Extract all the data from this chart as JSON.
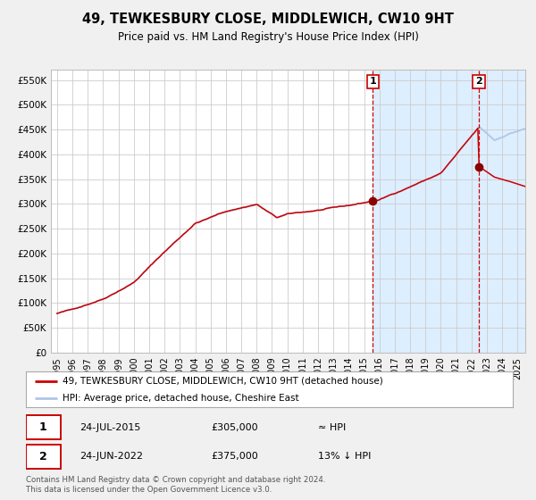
{
  "title": "49, TEWKESBURY CLOSE, MIDDLEWICH, CW10 9HT",
  "subtitle": "Price paid vs. HM Land Registry's House Price Index (HPI)",
  "legend_line1": "49, TEWKESBURY CLOSE, MIDDLEWICH, CW10 9HT (detached house)",
  "legend_line2": "HPI: Average price, detached house, Cheshire East",
  "annotation1_label": "1",
  "annotation1_date": "24-JUL-2015",
  "annotation1_price": "£305,000",
  "annotation1_hpi": "≈ HPI",
  "annotation1_year": 2015.56,
  "annotation1_value": 305000,
  "annotation2_label": "2",
  "annotation2_date": "24-JUN-2022",
  "annotation2_price": "£375,000",
  "annotation2_hpi": "13% ↓ HPI",
  "annotation2_year": 2022.48,
  "annotation2_value": 375000,
  "hpi_line_color": "#aec6e8",
  "price_line_color": "#cc0000",
  "dot_color": "#8b0000",
  "dashed_line_color": "#cc0000",
  "bg_before": "#ffffff",
  "bg_after": "#ddeeff",
  "grid_color": "#cccccc",
  "footer": "Contains HM Land Registry data © Crown copyright and database right 2024.\nThis data is licensed under the Open Government Licence v3.0.",
  "ylim": [
    0,
    570000
  ],
  "yticks": [
    0,
    50000,
    100000,
    150000,
    200000,
    250000,
    300000,
    350000,
    400000,
    450000,
    500000,
    550000
  ],
  "ytick_labels": [
    "£0",
    "£50K",
    "£100K",
    "£150K",
    "£200K",
    "£250K",
    "£300K",
    "£350K",
    "£400K",
    "£450K",
    "£500K",
    "£550K"
  ],
  "xlim_start": 1994.6,
  "xlim_end": 2025.5,
  "fig_bg": "#f0f0f0"
}
